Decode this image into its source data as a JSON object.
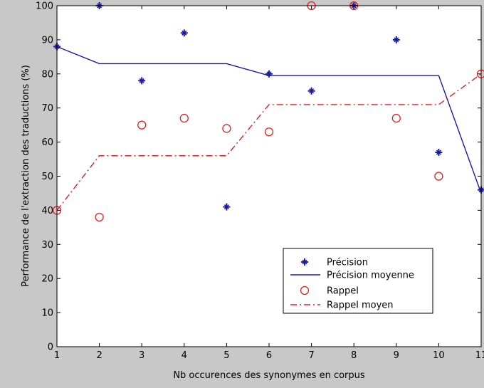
{
  "chart_data": {
    "type": "scatter",
    "xlabel": "Nb occurences des synonymes en corpus",
    "ylabel": "Performance de l'extraction des traductions (%)",
    "xlim": [
      1,
      11
    ],
    "ylim": [
      0,
      100
    ],
    "xticks": [
      1,
      2,
      3,
      4,
      5,
      6,
      7,
      8,
      9,
      10,
      11
    ],
    "yticks": [
      0,
      10,
      20,
      30,
      40,
      50,
      60,
      70,
      80,
      90,
      100
    ],
    "grid": false,
    "legend_position": "bottom-right",
    "series": [
      {
        "name": "Précision",
        "kind": "marker",
        "marker": "star",
        "color": "#1a1a9e",
        "x": [
          1,
          2,
          3,
          4,
          5,
          6,
          7,
          8,
          9,
          10,
          11
        ],
        "y": [
          88,
          100,
          78,
          92,
          41,
          80,
          75,
          100,
          90,
          57,
          46
        ]
      },
      {
        "name": "Précision moyenne",
        "kind": "line",
        "style": "solid",
        "color": "#1a1a9e",
        "x": [
          1,
          2,
          3,
          4,
          5,
          6,
          7,
          8,
          9,
          10,
          11
        ],
        "y": [
          88,
          83,
          83,
          83,
          83,
          79.5,
          79.5,
          79.5,
          79.5,
          79.5,
          45
        ]
      },
      {
        "name": "Rappel",
        "kind": "marker",
        "marker": "circle",
        "color": "#dd2222",
        "x": [
          1,
          2,
          3,
          4,
          5,
          6,
          7,
          8,
          9,
          10,
          11
        ],
        "y": [
          40,
          38,
          65,
          67,
          64,
          63,
          100,
          100,
          67,
          50,
          80
        ]
      },
      {
        "name": "Rappel moyen",
        "kind": "line",
        "style": "dashdot",
        "color": "#dd2222",
        "x": [
          1,
          2,
          3,
          4,
          5,
          6,
          7,
          8,
          9,
          10,
          11
        ],
        "y": [
          40,
          56,
          56,
          56,
          56,
          71,
          71,
          71,
          71,
          71,
          80
        ]
      }
    ]
  }
}
